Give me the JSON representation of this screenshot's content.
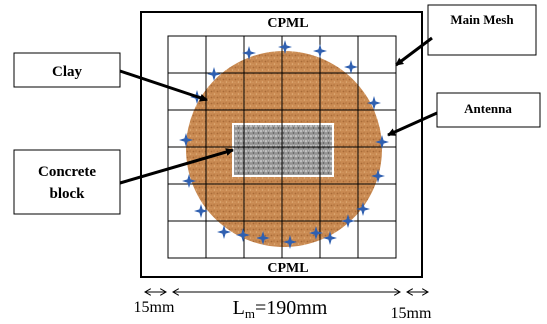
{
  "labels": {
    "cpml_top": "CPML",
    "cpml_bottom": "CPML",
    "main_mesh": "Main Mesh",
    "clay": "Clay",
    "antenna": "Antenna",
    "concrete_line1": "Concrete",
    "concrete_line2": "block"
  },
  "dimensions": {
    "left_margin": "15mm",
    "right_margin": "15mm",
    "mesh_length_prefix": "L",
    "mesh_length_subscript": "m",
    "mesh_length_value": "=190mm"
  },
  "colors": {
    "clay": "#c98a52",
    "concrete": "#9a9a9a",
    "antenna": "#3060b0",
    "lines": "#000000"
  },
  "mesh": {
    "columns": 6,
    "rows": 6
  },
  "antenna_count": 20
}
